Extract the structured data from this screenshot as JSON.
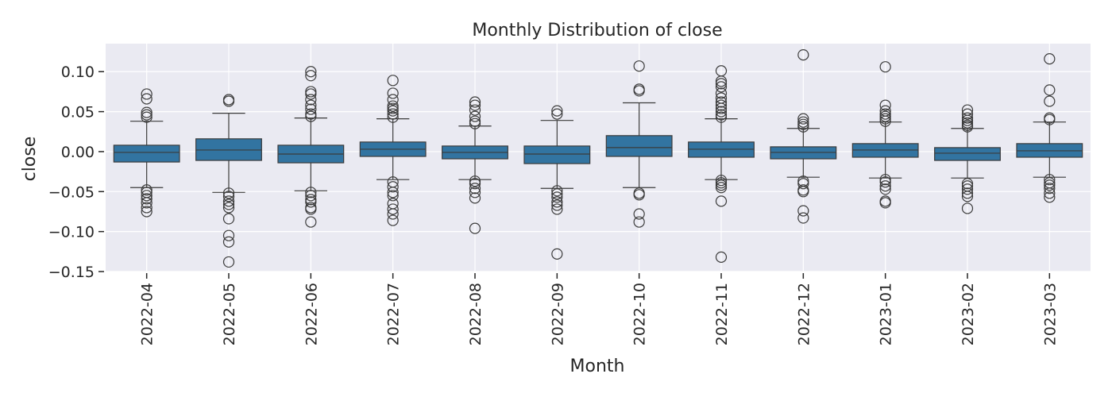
{
  "chart_data": {
    "type": "box",
    "title": "Monthly Distribution of close",
    "xlabel": "Month",
    "ylabel": "close",
    "ylim": [
      -0.15,
      0.135
    ],
    "yticks": [
      0.1,
      0.05,
      0.0,
      -0.05,
      -0.1,
      -0.15
    ],
    "ytick_labels": [
      "0.10",
      "0.05",
      "0.00",
      "−0.05",
      "−0.10",
      "−0.15"
    ],
    "grid": true,
    "colors": {
      "box": "#3274a1",
      "edge": "#3b3b3b",
      "background": "#eaeaf2",
      "grid": "#ffffff"
    },
    "categories": [
      "2022-04",
      "2022-05",
      "2022-06",
      "2022-07",
      "2022-08",
      "2022-09",
      "2022-10",
      "2022-11",
      "2022-12",
      "2023-01",
      "2023-02",
      "2023-03"
    ],
    "boxes": [
      {
        "month": "2022-04",
        "whislo": -0.045,
        "q1": -0.013,
        "med": -0.001,
        "q3": 0.008,
        "whishi": 0.038,
        "fliers": [
          0.072,
          0.066,
          0.049,
          0.046,
          0.043,
          -0.048,
          -0.051,
          -0.055,
          -0.059,
          -0.064,
          -0.07,
          -0.075
        ]
      },
      {
        "month": "2022-05",
        "whislo": -0.051,
        "q1": -0.011,
        "med": 0.002,
        "q3": 0.016,
        "whishi": 0.048,
        "fliers": [
          0.065,
          0.063,
          -0.052,
          -0.056,
          -0.062,
          -0.066,
          -0.07,
          -0.084,
          -0.105,
          -0.113,
          -0.138
        ]
      },
      {
        "month": "2022-06",
        "whislo": -0.049,
        "q1": -0.014,
        "med": -0.003,
        "q3": 0.008,
        "whishi": 0.042,
        "fliers": [
          0.1,
          0.095,
          0.075,
          0.072,
          0.065,
          0.058,
          0.053,
          0.047,
          0.044,
          -0.051,
          -0.055,
          -0.06,
          -0.063,
          -0.07,
          -0.072,
          -0.088
        ]
      },
      {
        "month": "2022-07",
        "whislo": -0.035,
        "q1": -0.006,
        "med": 0.003,
        "q3": 0.012,
        "whishi": 0.041,
        "fliers": [
          0.089,
          0.073,
          0.065,
          0.057,
          0.054,
          0.051,
          0.047,
          0.043,
          -0.038,
          -0.044,
          -0.051,
          -0.055,
          -0.065,
          -0.072,
          -0.078,
          -0.086
        ]
      },
      {
        "month": "2022-08",
        "whislo": -0.035,
        "q1": -0.009,
        "med": -0.001,
        "q3": 0.007,
        "whishi": 0.032,
        "fliers": [
          0.062,
          0.058,
          0.052,
          0.044,
          0.038,
          0.035,
          -0.037,
          -0.04,
          -0.046,
          -0.051,
          -0.058,
          -0.096
        ]
      },
      {
        "month": "2022-09",
        "whislo": -0.046,
        "q1": -0.015,
        "med": -0.003,
        "q3": 0.007,
        "whishi": 0.039,
        "fliers": [
          0.051,
          0.047,
          -0.049,
          -0.053,
          -0.057,
          -0.063,
          -0.067,
          -0.072,
          -0.128
        ]
      },
      {
        "month": "2022-10",
        "whislo": -0.045,
        "q1": -0.006,
        "med": 0.005,
        "q3": 0.02,
        "whishi": 0.061,
        "fliers": [
          0.107,
          0.078,
          0.076,
          -0.052,
          -0.054,
          -0.078,
          -0.088
        ]
      },
      {
        "month": "2022-11",
        "whislo": -0.035,
        "q1": -0.007,
        "med": 0.003,
        "q3": 0.012,
        "whishi": 0.041,
        "fliers": [
          0.101,
          0.088,
          0.085,
          0.081,
          0.073,
          0.067,
          0.062,
          0.058,
          0.054,
          0.05,
          0.046,
          0.043,
          -0.036,
          -0.039,
          -0.042,
          -0.045,
          -0.062,
          -0.132
        ]
      },
      {
        "month": "2022-12",
        "whislo": -0.032,
        "q1": -0.009,
        "med": -0.001,
        "q3": 0.006,
        "whishi": 0.029,
        "fliers": [
          0.121,
          0.041,
          0.037,
          0.034,
          0.031,
          -0.037,
          -0.04,
          -0.048,
          -0.05,
          -0.074,
          -0.083
        ]
      },
      {
        "month": "2023-01",
        "whislo": -0.033,
        "q1": -0.007,
        "med": 0.002,
        "q3": 0.01,
        "whishi": 0.037,
        "fliers": [
          0.106,
          0.058,
          0.051,
          0.047,
          0.044,
          0.041,
          0.038,
          -0.035,
          -0.038,
          -0.043,
          -0.047,
          -0.062,
          -0.064
        ]
      },
      {
        "month": "2023-02",
        "whislo": -0.033,
        "q1": -0.011,
        "med": -0.002,
        "q3": 0.005,
        "whishi": 0.029,
        "fliers": [
          0.052,
          0.047,
          0.042,
          0.039,
          0.036,
          0.033,
          0.031,
          -0.04,
          -0.043,
          -0.047,
          -0.052,
          -0.056,
          -0.071
        ]
      },
      {
        "month": "2023-03",
        "whislo": -0.032,
        "q1": -0.007,
        "med": 0.001,
        "q3": 0.01,
        "whishi": 0.037,
        "fliers": [
          0.116,
          0.077,
          0.063,
          0.042,
          0.04,
          -0.035,
          -0.039,
          -0.042,
          -0.046,
          -0.052,
          -0.057
        ]
      }
    ]
  }
}
